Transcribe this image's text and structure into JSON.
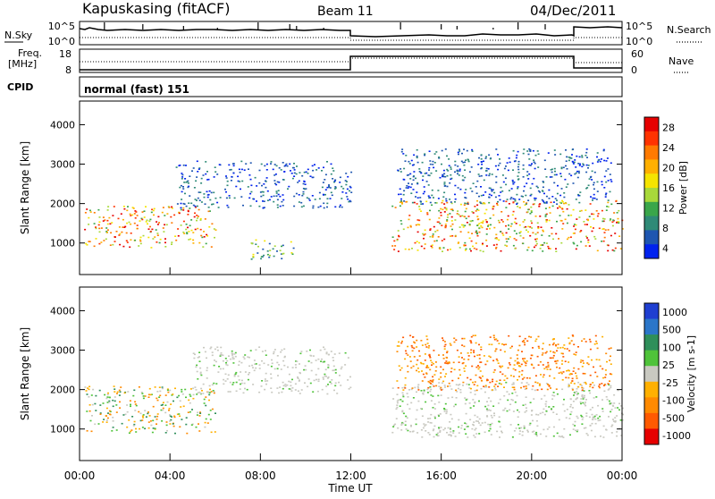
{
  "header": {
    "title": "Kapuskasing (fitACF)",
    "beam": "Beam 11",
    "date": "04/Dec/2011"
  },
  "top_panels": {
    "nsky_label": "N.Sky",
    "nsky_ticks": [
      "10^5",
      "10^0"
    ],
    "nsearch_label": "N.Search",
    "nsearch_ticks": [
      "10^5",
      "10^0"
    ],
    "freq_label_1": "Freq.",
    "freq_label_2": "[MHz]",
    "freq_ticks": [
      "18",
      "8"
    ],
    "nave_label": "Nave",
    "nave_ticks": [
      "60",
      "0"
    ],
    "cpid_label": "CPID",
    "cpid_value": "normal (fast) 151"
  },
  "x_axis": {
    "label": "Time UT",
    "ticks": [
      "00:00",
      "04:00",
      "08:00",
      "12:00",
      "16:00",
      "20:00",
      "00:00"
    ],
    "range_hours": [
      0,
      24
    ]
  },
  "chart_data": [
    {
      "type": "heatmap",
      "name": "power",
      "ylabel": "Slant Range [km]",
      "yticks": [
        "4000",
        "3000",
        "2000",
        "1000"
      ],
      "ylim": [
        200,
        4600
      ],
      "colorbar_label": "Power [dB]",
      "colorbar_ticks": [
        "28",
        "24",
        "20",
        "16",
        "12",
        "8",
        "4"
      ],
      "colorbar_colors": [
        "#e60000",
        "#ff3300",
        "#ff7a00",
        "#ffb000",
        "#f5e400",
        "#a8d93a",
        "#3aa64a",
        "#2f8a77",
        "#1e56b0",
        "#0022ee"
      ],
      "scatter_regions": [
        {
          "t0": 0.2,
          "t1": 6.0,
          "r0": 900,
          "r1": 1950,
          "level": "high"
        },
        {
          "t0": 4.2,
          "t1": 12.0,
          "r0": 1900,
          "r1": 3100,
          "level": "low"
        },
        {
          "t0": 7.5,
          "t1": 9.5,
          "r0": 600,
          "r1": 1100,
          "level": "mid"
        },
        {
          "t0": 13.8,
          "t1": 24.0,
          "r0": 800,
          "r1": 2100,
          "level": "high"
        },
        {
          "t0": 14.0,
          "t1": 23.5,
          "r0": 2000,
          "r1": 3400,
          "level": "low"
        }
      ]
    },
    {
      "type": "heatmap",
      "name": "velocity",
      "ylabel": "Slant Range [km]",
      "yticks": [
        "4000",
        "3000",
        "2000",
        "1000"
      ],
      "ylim": [
        200,
        4600
      ],
      "colorbar_label": "Velocity [m s-1]",
      "colorbar_ticks": [
        "1000",
        "500",
        "100",
        "25",
        "-25",
        "-100",
        "-500",
        "-1000"
      ],
      "colorbar_colors": [
        "#1f3fd1",
        "#2b76c9",
        "#2f8f5a",
        "#4fc33a",
        "#c9c9c1",
        "#ffb000",
        "#ff8a00",
        "#ff5a00",
        "#e60000"
      ],
      "scatter_regions": [
        {
          "t0": 0.2,
          "t1": 6.0,
          "r0": 900,
          "r1": 2100,
          "level": "pos"
        },
        {
          "t0": 5.0,
          "t1": 12.0,
          "r0": 1900,
          "r1": 3100,
          "level": "gs"
        },
        {
          "t0": 13.8,
          "t1": 24.0,
          "r0": 800,
          "r1": 2200,
          "level": "gs"
        },
        {
          "t0": 14.0,
          "t1": 23.5,
          "r0": 2000,
          "r1": 3400,
          "level": "neg"
        }
      ]
    }
  ]
}
